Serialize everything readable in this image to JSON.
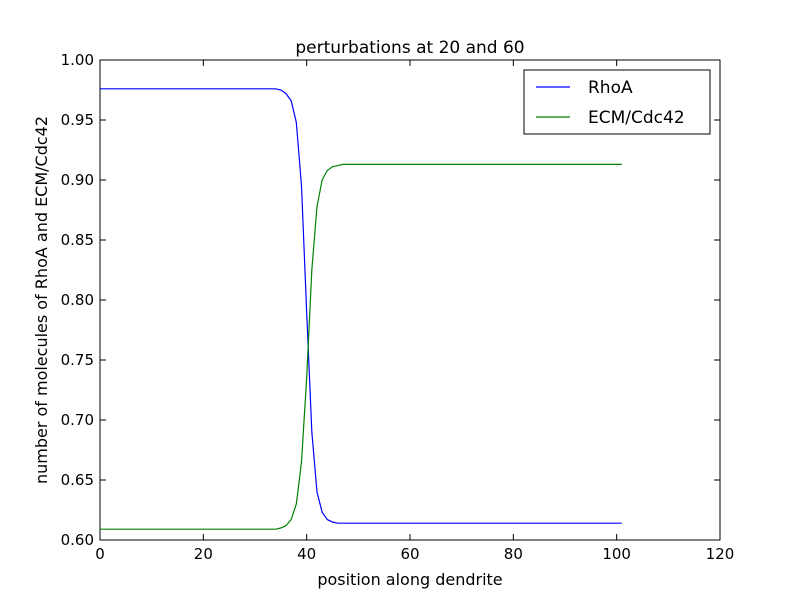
{
  "chart_data": {
    "type": "line",
    "title": "perturbations at 20 and 60",
    "xlabel": "position along dendrite",
    "ylabel": "number of molecules of RhoA and ECM/Cdc42",
    "xlim": [
      0,
      120
    ],
    "ylim": [
      0.6,
      1.0
    ],
    "xticks": [
      "0",
      "20",
      "40",
      "60",
      "80",
      "100",
      "120"
    ],
    "yticks": [
      "0.60",
      "0.65",
      "0.70",
      "0.75",
      "0.80",
      "0.85",
      "0.90",
      "0.95",
      "1.00"
    ],
    "grid": false,
    "legend_position": "top-right",
    "series": [
      {
        "name": "RhoA",
        "color": "#0000ff",
        "x": [
          0,
          10,
          20,
          30,
          34,
          35,
          36,
          37,
          38,
          39,
          40,
          41,
          42,
          43,
          44,
          45,
          46,
          47,
          48,
          50,
          60,
          70,
          80,
          90,
          101
        ],
        "y": [
          0.976,
          0.976,
          0.976,
          0.976,
          0.976,
          0.975,
          0.972,
          0.966,
          0.948,
          0.895,
          0.79,
          0.69,
          0.64,
          0.623,
          0.617,
          0.615,
          0.614,
          0.614,
          0.614,
          0.614,
          0.614,
          0.614,
          0.614,
          0.614,
          0.614
        ]
      },
      {
        "name": "ECM/Cdc42",
        "color": "#008000",
        "x": [
          0,
          10,
          20,
          30,
          34,
          35,
          36,
          37,
          38,
          39,
          40,
          41,
          42,
          43,
          44,
          45,
          46,
          47,
          48,
          50,
          60,
          70,
          80,
          90,
          101
        ],
        "y": [
          0.609,
          0.609,
          0.609,
          0.609,
          0.609,
          0.61,
          0.612,
          0.617,
          0.63,
          0.665,
          0.735,
          0.825,
          0.878,
          0.9,
          0.908,
          0.911,
          0.912,
          0.913,
          0.913,
          0.913,
          0.913,
          0.913,
          0.913,
          0.913,
          0.913
        ]
      }
    ]
  }
}
